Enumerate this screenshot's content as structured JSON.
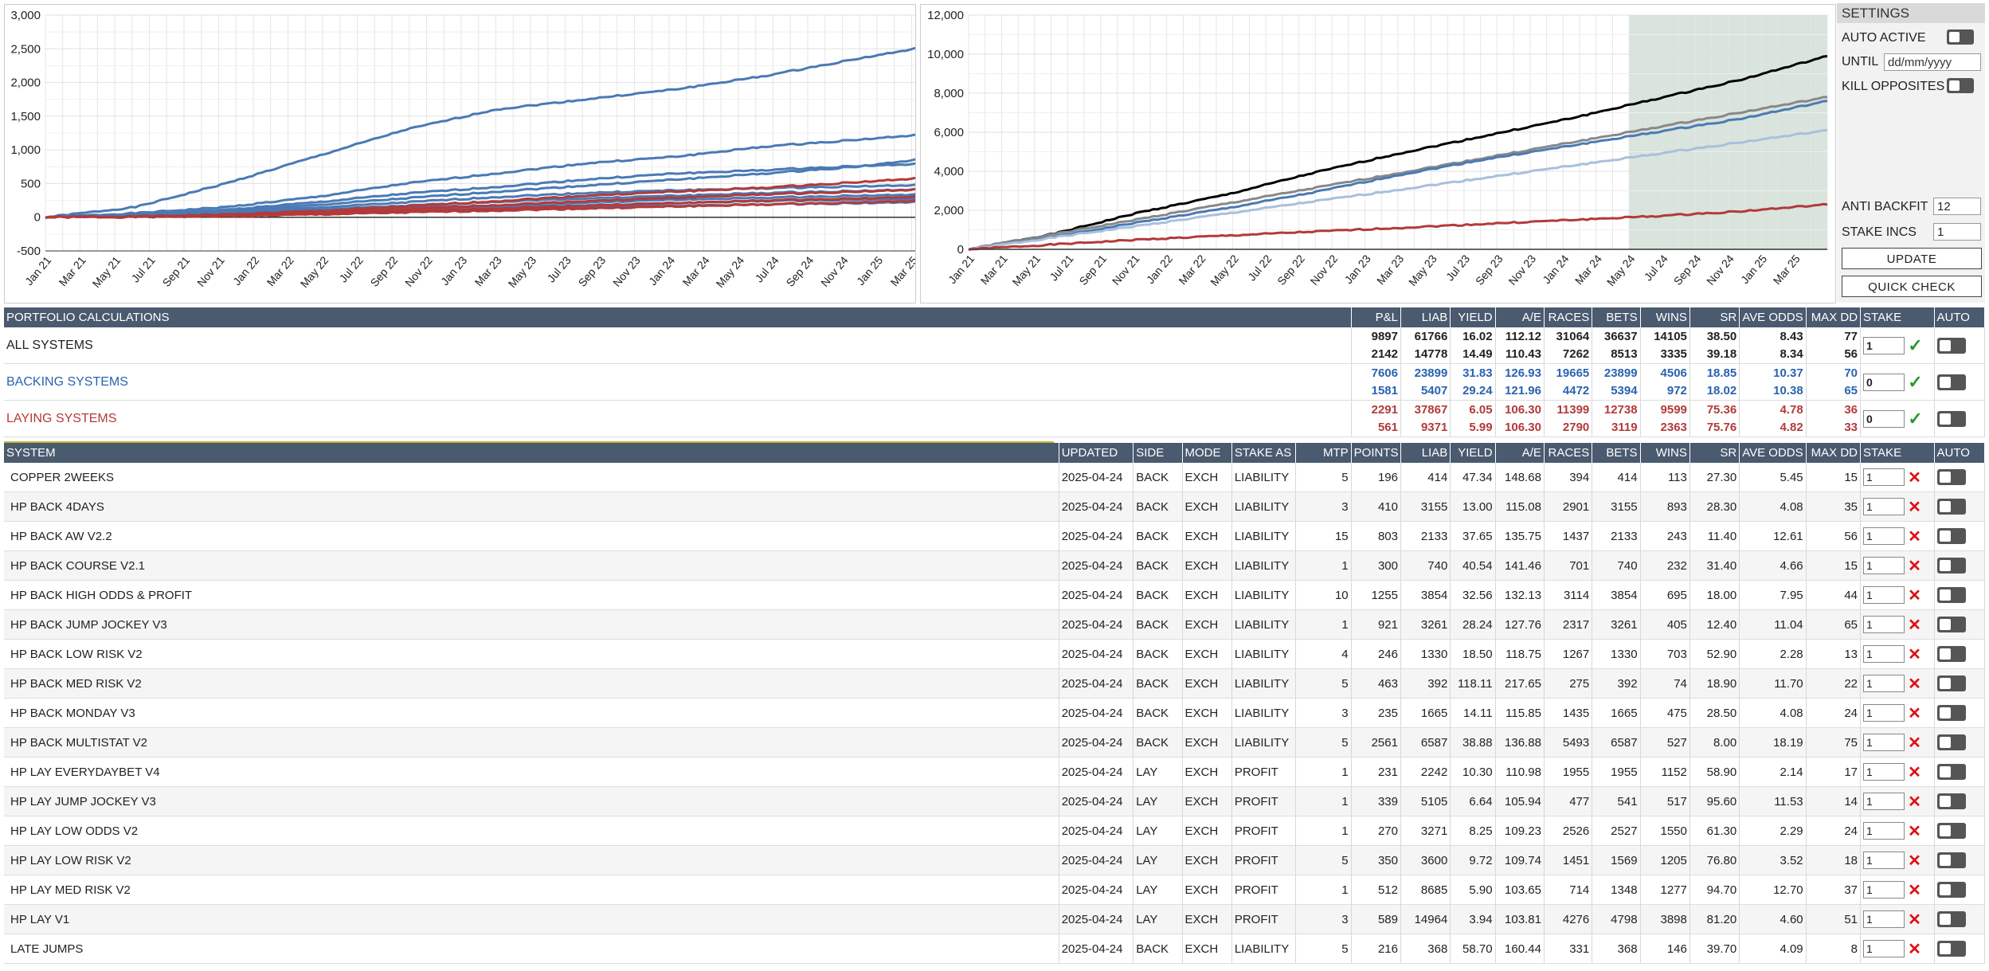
{
  "chart_data": [
    {
      "type": "line",
      "x_ticks": [
        "Jan 21",
        "Mar 21",
        "May 21",
        "Jul 21",
        "Sep 21",
        "Nov 21",
        "Jan 22",
        "Mar 22",
        "May 22",
        "Jul 22",
        "Sep 22",
        "Nov 22",
        "Jan 23",
        "Mar 23",
        "May 23",
        "Jul 23",
        "Sep 23",
        "Nov 23",
        "Jan 24",
        "Mar 24",
        "May 24",
        "Jul 24",
        "Sep 24",
        "Nov 24",
        "Jan 25",
        "Mar 25"
      ],
      "y_ticks": [
        "3,000",
        "2,500",
        "2,000",
        "1,500",
        "1,000",
        "500",
        "0",
        "-500"
      ],
      "ylim": [
        -500,
        3000
      ],
      "grid": true,
      "series": [
        {
          "color": "#4a7ab5",
          "values": [
            0,
            150,
            500,
            900,
            1300,
            1600,
            1750,
            1900,
            2100,
            2350,
            2580
          ]
        },
        {
          "color": "#4a7ab5",
          "values": [
            0,
            60,
            150,
            300,
            500,
            650,
            800,
            900,
            1050,
            1150,
            1250
          ]
        },
        {
          "color": "#4a7ab5",
          "values": [
            0,
            40,
            110,
            220,
            350,
            450,
            560,
            650,
            700,
            760,
            800
          ]
        },
        {
          "color": "#4a7ab5",
          "values": [
            0,
            30,
            90,
            180,
            280,
            380,
            470,
            560,
            650,
            750,
            900
          ]
        },
        {
          "color": "#4a7ab5",
          "values": [
            0,
            30,
            80,
            140,
            220,
            300,
            360,
            400,
            430,
            460,
            480
          ]
        },
        {
          "color": "#4a7ab5",
          "values": [
            0,
            20,
            60,
            110,
            170,
            230,
            280,
            320,
            360,
            390,
            420
          ]
        },
        {
          "color": "#4a7ab5",
          "values": [
            0,
            20,
            50,
            90,
            140,
            180,
            220,
            260,
            290,
            320,
            340
          ]
        },
        {
          "color": "#4a7ab5",
          "values": [
            0,
            15,
            40,
            70,
            110,
            150,
            180,
            210,
            240,
            260,
            280
          ]
        },
        {
          "color": "#4a7ab5",
          "values": [
            0,
            10,
            30,
            60,
            90,
            120,
            150,
            170,
            190,
            210,
            230
          ]
        },
        {
          "color": "#b33a3a",
          "values": [
            0,
            10,
            40,
            90,
            160,
            240,
            320,
            380,
            440,
            520,
            600
          ]
        },
        {
          "color": "#b33a3a",
          "values": [
            0,
            10,
            30,
            70,
            120,
            180,
            240,
            290,
            340,
            380,
            420
          ]
        },
        {
          "color": "#b33a3a",
          "values": [
            0,
            5,
            20,
            50,
            90,
            130,
            170,
            210,
            250,
            280,
            310
          ]
        },
        {
          "color": "#b33a3a",
          "values": [
            0,
            5,
            15,
            40,
            70,
            100,
            130,
            160,
            190,
            220,
            250
          ]
        }
      ]
    },
    {
      "type": "line",
      "x_ticks": [
        "Jan 21",
        "Mar 21",
        "May 21",
        "Jul 21",
        "Sep 21",
        "Nov 21",
        "Jan 22",
        "Mar 22",
        "May 22",
        "Jul 22",
        "Sep 22",
        "Nov 22",
        "Jan 23",
        "Mar 23",
        "May 23",
        "Jul 23",
        "Sep 23",
        "Nov 23",
        "Jan 24",
        "Mar 24",
        "May 24",
        "Jul 24",
        "Sep 24",
        "Nov 24",
        "Jan 25",
        "Mar 25"
      ],
      "y_ticks": [
        "12,000",
        "10,000",
        "8,000",
        "6,000",
        "4,000",
        "2,000",
        "0"
      ],
      "ylim": [
        0,
        12000
      ],
      "grid": true,
      "shaded_from": "May 24",
      "series": [
        {
          "color": "#000000",
          "values": [
            0,
            800,
            1900,
            2800,
            3900,
            4900,
            5800,
            6700,
            7700,
            8700,
            9900
          ]
        },
        {
          "color": "#888888",
          "values": [
            0,
            780,
            1560,
            2340,
            3120,
            3900,
            4680,
            5460,
            6240,
            7020,
            7800
          ]
        },
        {
          "color": "#4a7ab5",
          "values": [
            0,
            650,
            1400,
            2100,
            2900,
            3800,
            4600,
            5300,
            6000,
            6700,
            7600
          ]
        },
        {
          "color": "#a8c0dc",
          "values": [
            0,
            610,
            1220,
            1830,
            2440,
            3050,
            3660,
            4270,
            4880,
            5490,
            6100
          ]
        },
        {
          "color": "#b33a3a",
          "values": [
            0,
            250,
            500,
            700,
            900,
            1100,
            1300,
            1500,
            1700,
            1950,
            2300
          ]
        }
      ]
    }
  ],
  "settings": {
    "title": "SETTINGS",
    "auto_active": "AUTO ACTIVE",
    "until": "UNTIL",
    "until_placeholder": "dd/mm/yyyy",
    "kill_opposites": "KILL OPPOSITES",
    "anti_backfit": "ANTI BACKFIT",
    "anti_backfit_value": "12",
    "stake_incs": "STAKE INCS",
    "stake_incs_value": "1",
    "update": "UPDATE",
    "quick_check": "QUICK CHECK"
  },
  "portfolio": {
    "title": "PORTFOLIO CALCULATIONS",
    "headers": [
      "P&L",
      "LIAB",
      "YIELD",
      "A/E",
      "RACES",
      "BETS",
      "WINS",
      "SR",
      "AVE ODDS",
      "MAX DD",
      "STAKE",
      "AUTO"
    ],
    "rows": [
      {
        "name": "ALL SYSTEMS",
        "class": "",
        "a": [
          "9897",
          "61766",
          "16.02",
          "112.12",
          "31064",
          "36637",
          "14105",
          "38.50",
          "8.43",
          "77"
        ],
        "b": [
          "2142",
          "14778",
          "14.49",
          "110.43",
          "7262",
          "8513",
          "3335",
          "39.18",
          "8.34",
          "56"
        ],
        "stake": "1"
      },
      {
        "name": "BACKING SYSTEMS",
        "class": "blue",
        "a": [
          "7606",
          "23899",
          "31.83",
          "126.93",
          "19665",
          "23899",
          "4506",
          "18.85",
          "10.37",
          "70"
        ],
        "b": [
          "1581",
          "5407",
          "29.24",
          "121.96",
          "4472",
          "5394",
          "972",
          "18.02",
          "10.38",
          "65"
        ],
        "stake": "0"
      },
      {
        "name": "LAYING SYSTEMS",
        "class": "red",
        "a": [
          "2291",
          "37867",
          "6.05",
          "106.30",
          "11399",
          "12738",
          "9599",
          "75.36",
          "4.78",
          "36"
        ],
        "b": [
          "561",
          "9371",
          "5.99",
          "106.30",
          "2790",
          "3119",
          "2363",
          "75.76",
          "4.82",
          "33"
        ],
        "stake": "0"
      }
    ]
  },
  "systems": {
    "headers": [
      "SYSTEM",
      "UPDATED",
      "SIDE",
      "MODE",
      "STAKE AS",
      "MTP",
      "POINTS",
      "LIAB",
      "YIELD",
      "A/E",
      "RACES",
      "BETS",
      "WINS",
      "SR",
      "AVE ODDS",
      "MAX DD",
      "STAKE",
      "AUTO"
    ],
    "rows": [
      [
        "COPPER 2WEEKS",
        "2025-04-24",
        "BACK",
        "EXCH",
        "LIABILITY",
        "5",
        "196",
        "414",
        "47.34",
        "148.68",
        "394",
        "414",
        "113",
        "27.30",
        "5.45",
        "15",
        "1"
      ],
      [
        "HP BACK 4DAYS",
        "2025-04-24",
        "BACK",
        "EXCH",
        "LIABILITY",
        "3",
        "410",
        "3155",
        "13.00",
        "115.08",
        "2901",
        "3155",
        "893",
        "28.30",
        "4.08",
        "35",
        "1"
      ],
      [
        "HP BACK AW V2.2",
        "2025-04-24",
        "BACK",
        "EXCH",
        "LIABILITY",
        "15",
        "803",
        "2133",
        "37.65",
        "135.75",
        "1437",
        "2133",
        "243",
        "11.40",
        "12.61",
        "56",
        "1"
      ],
      [
        "HP BACK COURSE V2.1",
        "2025-04-24",
        "BACK",
        "EXCH",
        "LIABILITY",
        "1",
        "300",
        "740",
        "40.54",
        "141.46",
        "701",
        "740",
        "232",
        "31.40",
        "4.66",
        "15",
        "1"
      ],
      [
        "HP BACK HIGH ODDS & PROFIT",
        "2025-04-24",
        "BACK",
        "EXCH",
        "LIABILITY",
        "10",
        "1255",
        "3854",
        "32.56",
        "132.13",
        "3114",
        "3854",
        "695",
        "18.00",
        "7.95",
        "44",
        "1"
      ],
      [
        "HP BACK JUMP JOCKEY V3",
        "2025-04-24",
        "BACK",
        "EXCH",
        "LIABILITY",
        "1",
        "921",
        "3261",
        "28.24",
        "127.76",
        "2317",
        "3261",
        "405",
        "12.40",
        "11.04",
        "65",
        "1"
      ],
      [
        "HP BACK LOW RISK V2",
        "2025-04-24",
        "BACK",
        "EXCH",
        "LIABILITY",
        "4",
        "246",
        "1330",
        "18.50",
        "118.75",
        "1267",
        "1330",
        "703",
        "52.90",
        "2.28",
        "13",
        "1"
      ],
      [
        "HP BACK MED RISK V2",
        "2025-04-24",
        "BACK",
        "EXCH",
        "LIABILITY",
        "5",
        "463",
        "392",
        "118.11",
        "217.65",
        "275",
        "392",
        "74",
        "18.90",
        "11.70",
        "22",
        "1"
      ],
      [
        "HP BACK MONDAY V3",
        "2025-04-24",
        "BACK",
        "EXCH",
        "LIABILITY",
        "3",
        "235",
        "1665",
        "14.11",
        "115.85",
        "1435",
        "1665",
        "475",
        "28.50",
        "4.08",
        "24",
        "1"
      ],
      [
        "HP BACK MULTISTAT V2",
        "2025-04-24",
        "BACK",
        "EXCH",
        "LIABILITY",
        "5",
        "2561",
        "6587",
        "38.88",
        "136.88",
        "5493",
        "6587",
        "527",
        "8.00",
        "18.19",
        "75",
        "1"
      ],
      [
        "HP LAY EVERYDAYBET V4",
        "2025-04-24",
        "LAY",
        "EXCH",
        "PROFIT",
        "1",
        "231",
        "2242",
        "10.30",
        "110.98",
        "1955",
        "1955",
        "1152",
        "58.90",
        "2.14",
        "17",
        "1"
      ],
      [
        "HP LAY JUMP JOCKEY V3",
        "2025-04-24",
        "LAY",
        "EXCH",
        "PROFIT",
        "1",
        "339",
        "5105",
        "6.64",
        "105.94",
        "477",
        "541",
        "517",
        "95.60",
        "11.53",
        "14",
        "1"
      ],
      [
        "HP LAY LOW ODDS V2",
        "2025-04-24",
        "LAY",
        "EXCH",
        "PROFIT",
        "1",
        "270",
        "3271",
        "8.25",
        "109.23",
        "2526",
        "2527",
        "1550",
        "61.30",
        "2.29",
        "24",
        "1"
      ],
      [
        "HP LAY LOW RISK V2",
        "2025-04-24",
        "LAY",
        "EXCH",
        "PROFIT",
        "5",
        "350",
        "3600",
        "9.72",
        "109.74",
        "1451",
        "1569",
        "1205",
        "76.80",
        "3.52",
        "18",
        "1"
      ],
      [
        "HP LAY MED RISK V2",
        "2025-04-24",
        "LAY",
        "EXCH",
        "PROFIT",
        "1",
        "512",
        "8685",
        "5.90",
        "103.65",
        "714",
        "1348",
        "1277",
        "94.70",
        "12.70",
        "37",
        "1"
      ],
      [
        "HP LAY V1",
        "2025-04-24",
        "LAY",
        "EXCH",
        "PROFIT",
        "3",
        "589",
        "14964",
        "3.94",
        "103.81",
        "4276",
        "4798",
        "3898",
        "81.20",
        "4.60",
        "51",
        "1"
      ],
      [
        "LATE JUMPS",
        "2025-04-24",
        "BACK",
        "EXCH",
        "LIABILITY",
        "5",
        "216",
        "368",
        "58.70",
        "160.44",
        "331",
        "368",
        "146",
        "39.70",
        "4.09",
        "8",
        "1"
      ]
    ]
  }
}
